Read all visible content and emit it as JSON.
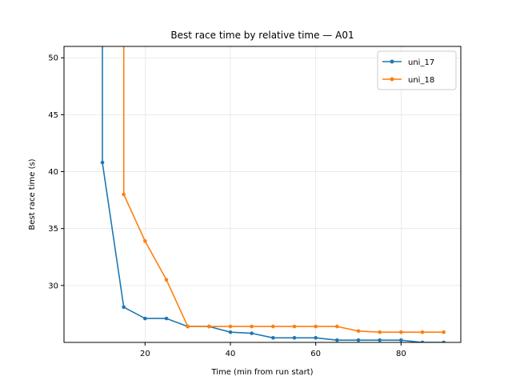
{
  "chart_data": {
    "type": "line",
    "title": "Best race time by relative time — A01",
    "xlabel": "Time (min from run start)",
    "ylabel": "Best race time (s)",
    "xlim": [
      1,
      94
    ],
    "ylim": [
      25.0,
      51.0
    ],
    "xticks": [
      20,
      40,
      60,
      80
    ],
    "yticks": [
      30,
      35,
      40,
      45,
      50
    ],
    "grid": true,
    "legend_position": "top-right",
    "colors": {
      "uni_17": "#1f77b4",
      "uni_18": "#ff7f0e"
    },
    "series": [
      {
        "name": "uni_17",
        "x": [
          10,
          15,
          20,
          25,
          30,
          35,
          40,
          45,
          50,
          55,
          60,
          65,
          70,
          75,
          80,
          85,
          90
        ],
        "y": [
          40.8,
          28.1,
          27.1,
          27.1,
          26.4,
          26.4,
          25.9,
          25.8,
          25.4,
          25.4,
          25.4,
          25.2,
          25.2,
          25.2,
          25.2,
          25.0,
          25.0
        ],
        "start_above": 51.0
      },
      {
        "name": "uni_18",
        "x": [
          15,
          20,
          25,
          30,
          35,
          40,
          45,
          50,
          55,
          60,
          65,
          70,
          75,
          80,
          85,
          90
        ],
        "y": [
          38.0,
          33.9,
          30.5,
          26.4,
          26.4,
          26.4,
          26.4,
          26.4,
          26.4,
          26.4,
          26.4,
          26.0,
          25.9,
          25.9,
          25.9,
          25.9
        ],
        "start_above": 51.0
      }
    ]
  }
}
